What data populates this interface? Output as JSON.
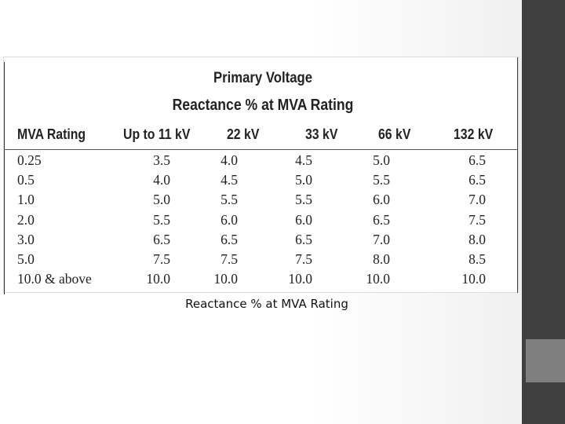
{
  "table": {
    "title": "Primary Voltage",
    "subtitle": "Reactance % at MVA Rating",
    "columns": [
      "MVA Rating",
      "Up to 11 kV",
      "22 kV",
      "33 kV",
      "66 kV",
      "132 kV"
    ],
    "rows": [
      [
        "0.25",
        "3.5",
        "4.0",
        "4.5",
        "5.0",
        "6.5"
      ],
      [
        "0.5",
        "4.0",
        "4.5",
        "5.0",
        "5.5",
        "6.5"
      ],
      [
        "1.0",
        "5.0",
        "5.5",
        "5.5",
        "6.0",
        "7.0"
      ],
      [
        "2.0",
        "5.5",
        "6.0",
        "6.0",
        "6.5",
        "7.5"
      ],
      [
        "3.0",
        "6.5",
        "6.5",
        "6.5",
        "7.0",
        "8.0"
      ],
      [
        "5.0",
        "7.5",
        "7.5",
        "7.5",
        "8.0",
        "8.5"
      ],
      [
        "10.0 & above",
        "10.0",
        "10.0",
        "10.0",
        "10.0",
        "10.0"
      ]
    ]
  },
  "caption": "Reactance % at MVA Rating",
  "colors": {
    "sidebar_dark": "#404040",
    "sidebar_accent": "#7f7f7f",
    "text": "#222222"
  }
}
